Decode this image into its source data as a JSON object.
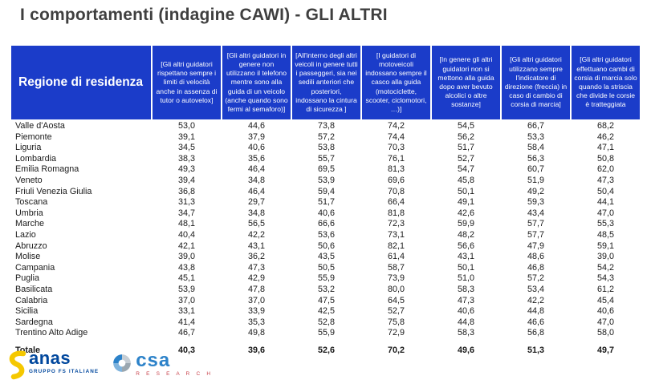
{
  "title": "I comportamenti (indagine CAWI) - GLI ALTRI",
  "table": {
    "region_header": "Regione di residenza",
    "columns": [
      "[Gli altri guidatori rispettano sempre i limiti di velocità anche in assenza di tutor o autovelox]",
      "[Gli altri guidatori in genere non utilizzano il telefono mentre sono alla guida di un veicolo (anche quando sono fermi al semaforo)]",
      "[All'interno degli altri veicoli in genere tutti i passeggeri,  sia nei sedili anteriori che posteriori, indossano la cintura di sicurezza ]",
      "[I guidatori di motoveicoli indossano sempre il casco alla guida (motociclette, scooter, ciclomotori, …)]",
      "[In genere gli altri guidatori non si mettono alla guida dopo aver bevuto alcolici o altre sostanze]",
      "[Gli altri guidatori utilizzano sempre l'indicatore di direzione (freccia) in caso di cambio di corsia  di marcia]",
      "[Gli altri guidatori effettuano cambi di corsia di marcia solo quando la striscia che divide le corsie è tratteggiata"
    ],
    "rows": [
      {
        "region": "Valle d'Aosta",
        "values": [
          "53,0",
          "44,6",
          "73,8",
          "74,2",
          "54,5",
          "66,7",
          "68,2"
        ]
      },
      {
        "region": "Piemonte",
        "values": [
          "39,1",
          "37,9",
          "57,2",
          "74,4",
          "56,2",
          "53,3",
          "46,2"
        ]
      },
      {
        "region": "Liguria",
        "values": [
          "34,5",
          "40,6",
          "53,8",
          "70,3",
          "51,7",
          "58,4",
          "47,1"
        ]
      },
      {
        "region": "Lombardia",
        "values": [
          "38,3",
          "35,6",
          "55,7",
          "76,1",
          "52,7",
          "56,3",
          "50,8"
        ]
      },
      {
        "region": "Emilia Romagna",
        "values": [
          "49,3",
          "46,4",
          "69,5",
          "81,3",
          "54,7",
          "60,7",
          "62,0"
        ]
      },
      {
        "region": "Veneto",
        "values": [
          "39,4",
          "34,8",
          "53,9",
          "69,6",
          "45,8",
          "51,9",
          "47,3"
        ]
      },
      {
        "region": "Friuli Venezia Giulia",
        "values": [
          "36,8",
          "46,4",
          "59,4",
          "70,8",
          "50,1",
          "49,2",
          "50,4"
        ]
      },
      {
        "region": "Toscana",
        "values": [
          "31,3",
          "29,7",
          "51,7",
          "66,4",
          "49,1",
          "59,3",
          "44,1"
        ]
      },
      {
        "region": "Umbria",
        "values": [
          "34,7",
          "34,8",
          "40,6",
          "81,8",
          "42,6",
          "43,4",
          "47,0"
        ]
      },
      {
        "region": "Marche",
        "values": [
          "48,1",
          "56,5",
          "66,6",
          "72,3",
          "59,9",
          "57,7",
          "55,3"
        ]
      },
      {
        "region": "Lazio",
        "values": [
          "40,4",
          "42,2",
          "53,6",
          "73,1",
          "48,2",
          "57,7",
          "48,5"
        ]
      },
      {
        "region": "Abruzzo",
        "values": [
          "42,1",
          "43,1",
          "50,6",
          "82,1",
          "56,6",
          "47,9",
          "59,1"
        ]
      },
      {
        "region": "Molise",
        "values": [
          "39,0",
          "36,2",
          "43,5",
          "61,4",
          "43,1",
          "48,6",
          "39,0"
        ]
      },
      {
        "region": "Campania",
        "values": [
          "43,8",
          "47,3",
          "50,5",
          "58,7",
          "50,1",
          "46,8",
          "54,2"
        ]
      },
      {
        "region": "Puglia",
        "values": [
          "45,1",
          "42,9",
          "55,9",
          "73,9",
          "51,0",
          "57,2",
          "54,3"
        ]
      },
      {
        "region": "Basilicata",
        "values": [
          "53,9",
          "47,8",
          "53,2",
          "80,0",
          "58,3",
          "53,4",
          "61,2"
        ]
      },
      {
        "region": "Calabria",
        "values": [
          "37,0",
          "37,0",
          "47,5",
          "64,5",
          "47,3",
          "42,2",
          "45,4"
        ]
      },
      {
        "region": "Sicilia",
        "values": [
          "33,1",
          "33,9",
          "42,5",
          "52,7",
          "40,6",
          "44,8",
          "40,6"
        ]
      },
      {
        "region": "Sardegna",
        "values": [
          "41,4",
          "35,3",
          "52,8",
          "75,8",
          "44,8",
          "46,6",
          "47,0"
        ]
      },
      {
        "region": "Trentino Alto Adige",
        "values": [
          "46,7",
          "49,8",
          "55,9",
          "72,9",
          "58,3",
          "56,8",
          "58,0"
        ]
      }
    ],
    "totale": {
      "region": "Totale",
      "values": [
        "40,3",
        "39,6",
        "52,6",
        "70,2",
        "49,6",
        "51,3",
        "49,7"
      ]
    }
  },
  "chart_data": {
    "type": "table",
    "title": "I comportamenti (indagine CAWI) - GLI ALTRI",
    "row_header": "Regione di residenza",
    "note": "values are percentages with Italian decimal commas"
  },
  "footer": {
    "anas": {
      "name": "anas",
      "subtitle": "GRUPPO FS ITALIANE"
    },
    "csa": {
      "name": "csa",
      "subtitle": "R E S E A R C H"
    }
  },
  "colors": {
    "header_blue": "#1b3cc9",
    "title_gray": "#3f3f3f",
    "anas_blue": "#00479d",
    "anas_yellow": "#f5c800",
    "csa_blue": "#2c82c9",
    "csa_gray": "#9aa7b0",
    "csa_red": "#c9444d"
  }
}
